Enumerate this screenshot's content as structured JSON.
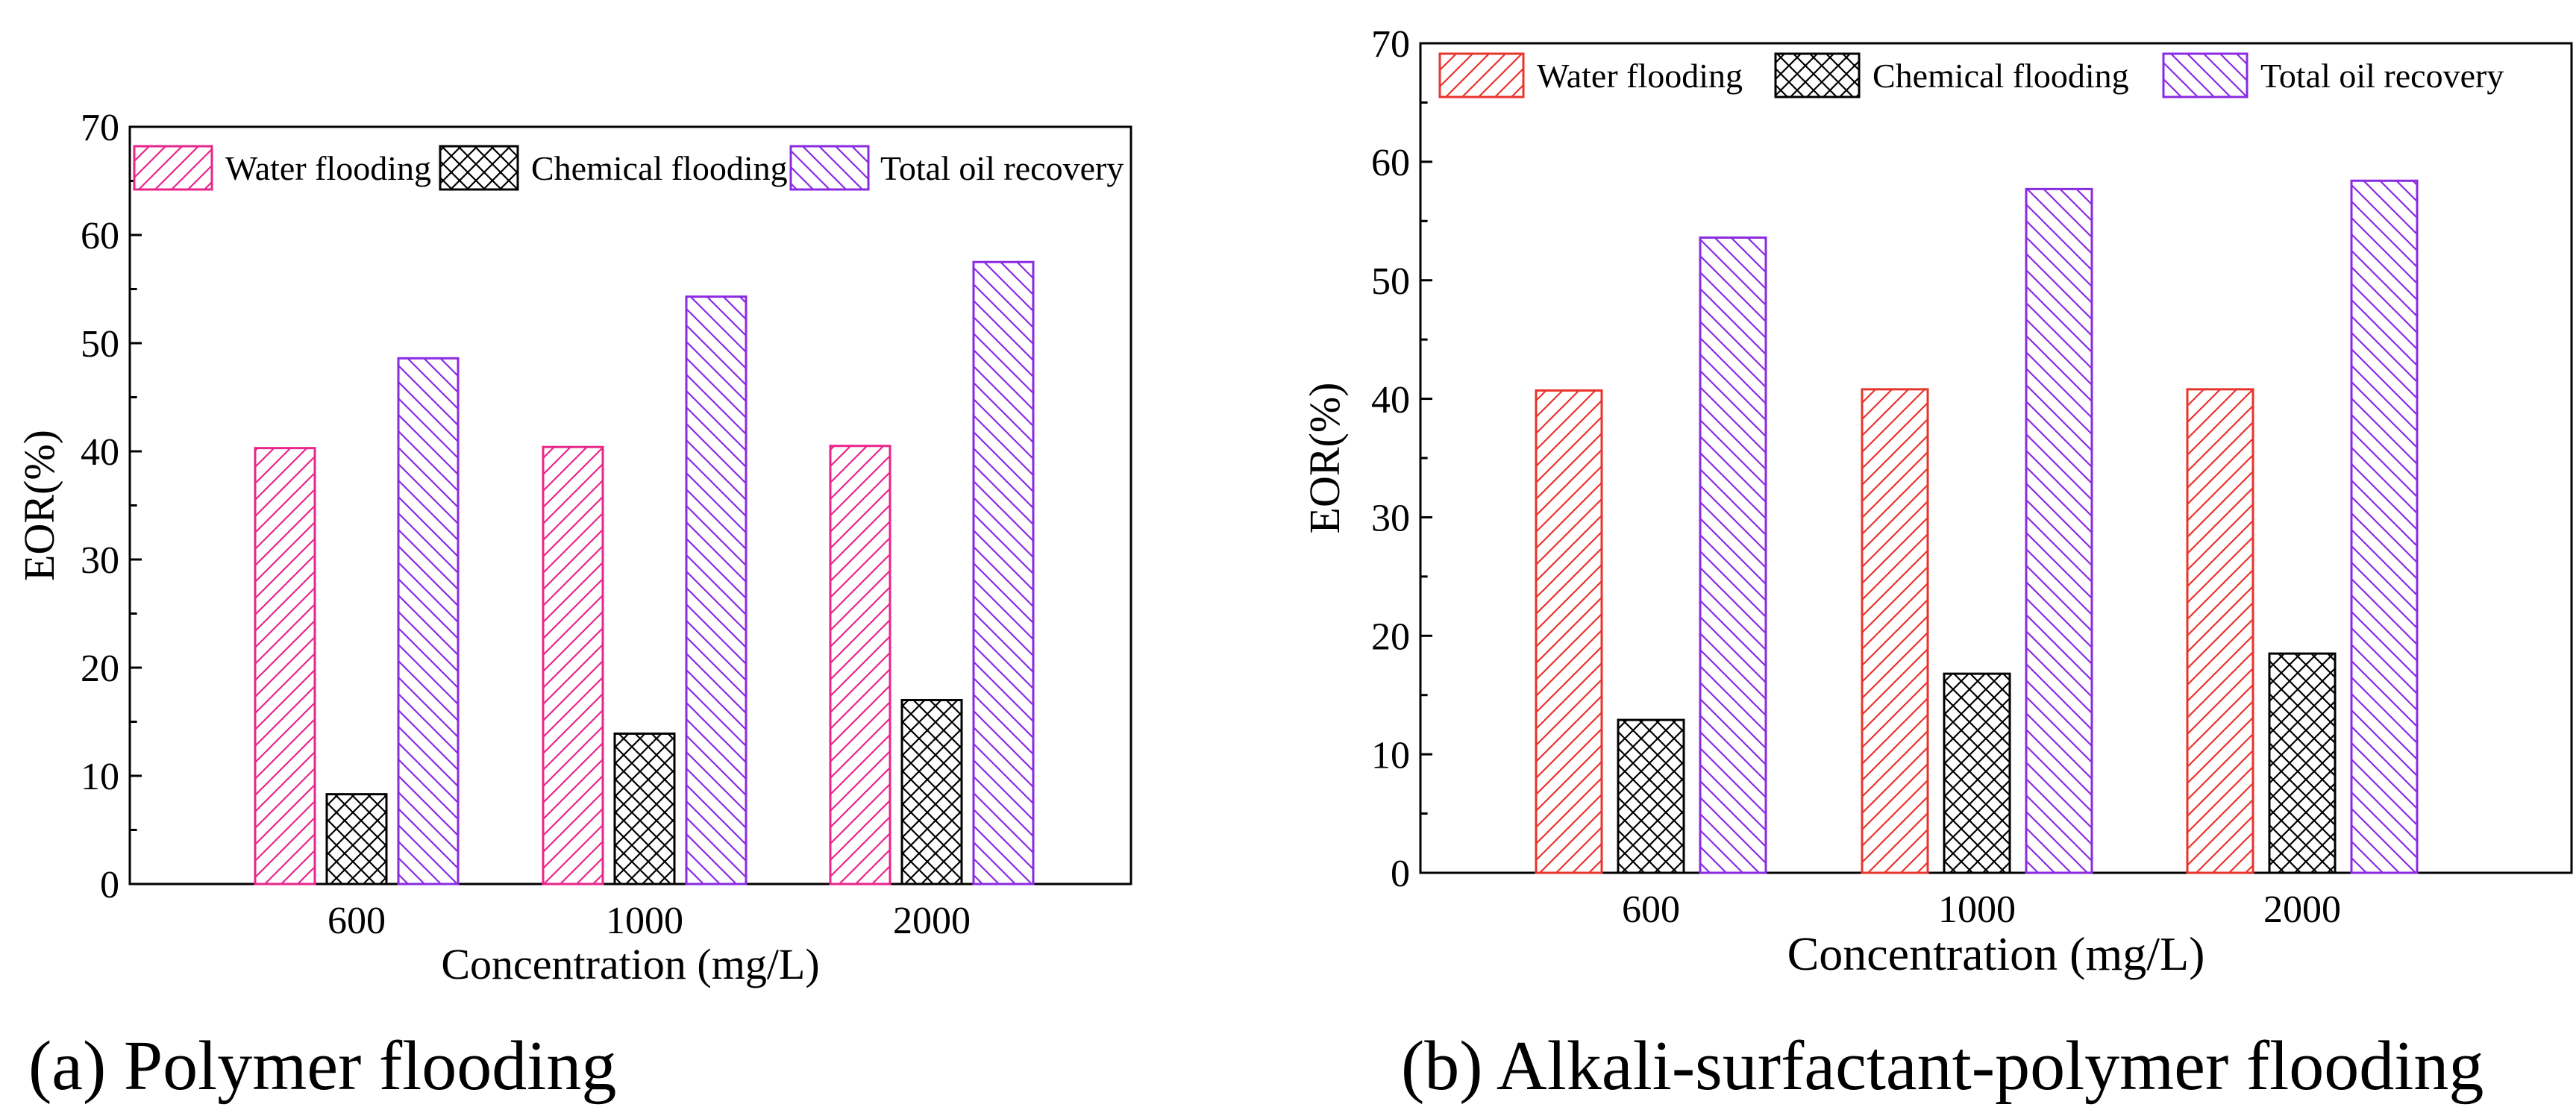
{
  "chart_data": [
    {
      "type": "bar",
      "panel_label": "(a) Polymer flooding",
      "xlabel": "Concentration (mg/L)",
      "ylabel": "EOR(%)",
      "ylim": [
        0,
        70
      ],
      "yticks": [
        "0",
        "10",
        "20",
        "30",
        "40",
        "50",
        "60",
        "70"
      ],
      "categories": [
        "600",
        "1000",
        "2000"
      ],
      "legend_position": "top",
      "series": [
        {
          "name": "Water flooding",
          "color": "#e8268a",
          "pattern": "diag-up",
          "values": [
            40.3,
            40.4,
            40.5
          ]
        },
        {
          "name": "Chemical flooding",
          "color": "#000000",
          "pattern": "cross",
          "values": [
            8.3,
            13.9,
            17.0
          ]
        },
        {
          "name": "Total oil recovery",
          "color": "#8a2be2",
          "pattern": "diag-down",
          "values": [
            48.6,
            54.3,
            57.5
          ]
        }
      ]
    },
    {
      "type": "bar",
      "panel_label": "(b) Alkali-surfactant-polymer flooding",
      "xlabel": "Concentration (mg/L)",
      "ylabel": "EOR(%)",
      "ylim": [
        0,
        70
      ],
      "yticks": [
        "0",
        "10",
        "20",
        "30",
        "40",
        "50",
        "60",
        "70"
      ],
      "categories": [
        "600",
        "1000",
        "2000"
      ],
      "legend_position": "top",
      "series": [
        {
          "name": "Water flooding",
          "color": "#e8342c",
          "pattern": "diag-up",
          "values": [
            40.7,
            40.8,
            40.8
          ]
        },
        {
          "name": "Chemical flooding",
          "color": "#000000",
          "pattern": "cross",
          "values": [
            12.9,
            16.8,
            18.5
          ]
        },
        {
          "name": "Total oil recovery",
          "color": "#8a2be2",
          "pattern": "diag-down",
          "values": [
            53.6,
            57.7,
            58.4
          ]
        }
      ]
    }
  ]
}
